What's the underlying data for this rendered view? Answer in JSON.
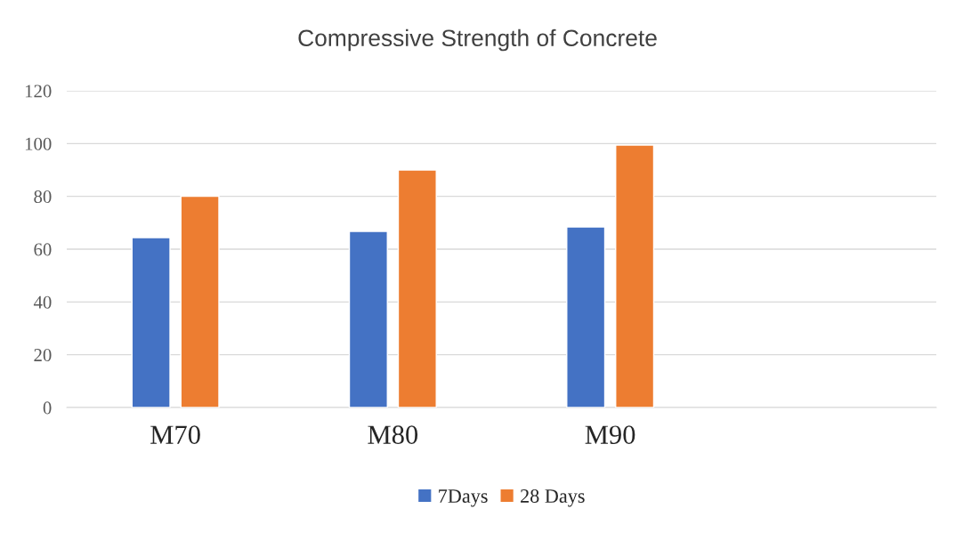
{
  "chart_data": {
    "type": "bar",
    "title": "Compressive Strength of Concrete",
    "categories": [
      "M70",
      "M80",
      "M90",
      null
    ],
    "series": [
      {
        "name": "7Days",
        "color": "#4472c4",
        "values": [
          64.4,
          66.7,
          68.4,
          null
        ]
      },
      {
        "name": "28 Days",
        "color": "#ed7d31",
        "values": [
          80,
          90,
          99.4,
          null
        ]
      }
    ],
    "ylim": [
      0,
      120
    ],
    "yticks": [
      0,
      20,
      40,
      60,
      80,
      100,
      120
    ],
    "grid": "y",
    "legend": "bottom"
  }
}
